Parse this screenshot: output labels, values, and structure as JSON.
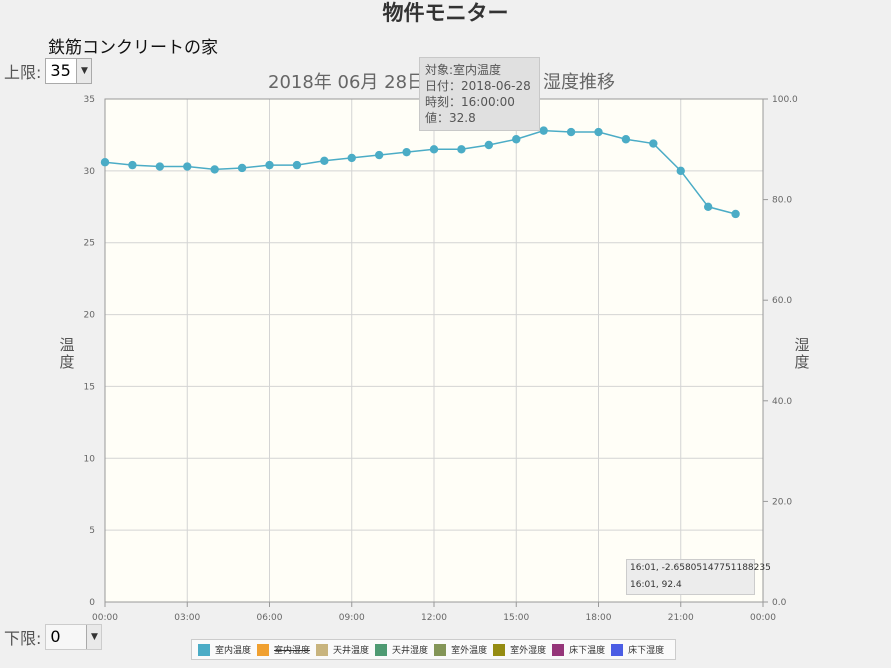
{
  "page": {
    "title": "物件モニター",
    "building_name": "鉄筋コンクリートの家",
    "upper_limit_label": "上限:",
    "upper_limit_value": "35",
    "lower_limit_label": "下限:",
    "lower_limit_value": "0"
  },
  "tooltip": {
    "line1": "対象:室内温度",
    "line2": "日付：2018-06-28",
    "line3": "時刻：16:00:00",
    "line4": "値：32.8"
  },
  "coord_readout": {
    "line1": "16:01, -2.65805147751188235",
    "line2": "16:01, 92.4"
  },
  "chart_data": {
    "type": "line",
    "title_left": "2018年 06月 28日",
    "title_right": "湿度推移",
    "ylabel": "温度",
    "y2label": "湿度",
    "ylim": [
      0,
      35
    ],
    "y2lim": [
      0,
      100
    ],
    "y_ticks": [
      "0",
      "5",
      "10",
      "15",
      "20",
      "25",
      "30",
      "35"
    ],
    "y2_ticks": [
      "0.0",
      "20.0",
      "40.0",
      "60.0",
      "80.0",
      "100.0"
    ],
    "x_ticks": [
      "00:00",
      "03:00",
      "06:00",
      "09:00",
      "12:00",
      "15:00",
      "18:00",
      "21:00",
      "00:00"
    ],
    "x_range_hours": [
      0,
      24
    ],
    "grid": true,
    "legend_position": "bottom",
    "background": "#fffef7",
    "series": [
      {
        "name": "室内温度",
        "color": "#4bacc6",
        "x": [
          0,
          1,
          2,
          3,
          4,
          5,
          6,
          7,
          8,
          9,
          10,
          11,
          12,
          13,
          14,
          15,
          16,
          17,
          18,
          19,
          20,
          21,
          22,
          23
        ],
        "values": [
          30.6,
          30.4,
          30.3,
          30.3,
          30.1,
          30.2,
          30.4,
          30.4,
          30.7,
          30.9,
          31.1,
          31.3,
          31.5,
          31.5,
          31.8,
          32.2,
          32.8,
          32.7,
          32.7,
          32.2,
          31.9,
          30.0,
          27.5,
          27.0
        ]
      }
    ],
    "legend": [
      {
        "name": "室内温度",
        "color": "#4bacc6",
        "hidden": false
      },
      {
        "name": "室内湿度",
        "color": "#f0a030",
        "hidden": true
      },
      {
        "name": "天井温度",
        "color": "#c8b47e",
        "hidden": false
      },
      {
        "name": "天井湿度",
        "color": "#4e9a72",
        "hidden": false
      },
      {
        "name": "室外温度",
        "color": "#839557",
        "hidden": false
      },
      {
        "name": "室外湿度",
        "color": "#958c12",
        "hidden": false
      },
      {
        "name": "床下温度",
        "color": "#953579",
        "hidden": false
      },
      {
        "name": "床下湿度",
        "color": "#4b5de4",
        "hidden": false
      }
    ]
  }
}
